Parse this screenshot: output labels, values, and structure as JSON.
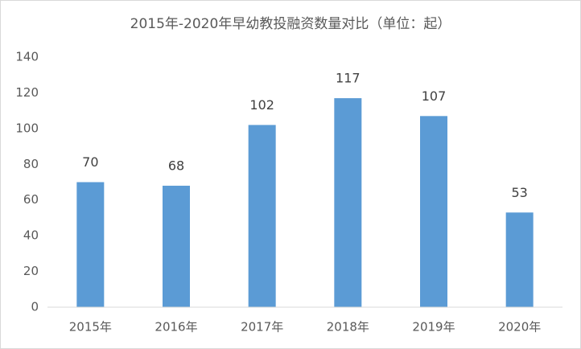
{
  "chart_data": {
    "type": "bar",
    "title": "2015年-2020年早幼教投融资数量对比（单位：起）",
    "categories": [
      "2015年",
      "2016年",
      "2017年",
      "2018年",
      "2019年",
      "2020年"
    ],
    "values": [
      70,
      68,
      102,
      117,
      107,
      53
    ],
    "color": "#5b9bd5",
    "ylim": [
      0,
      140
    ],
    "yticks": [
      0,
      20,
      40,
      60,
      80,
      100,
      120,
      140
    ],
    "grid": false
  }
}
